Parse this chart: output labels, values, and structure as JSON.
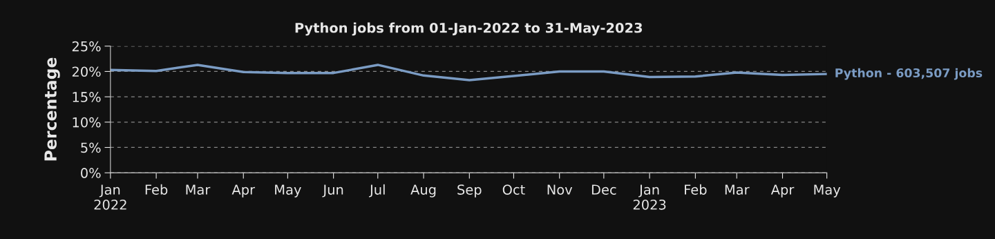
{
  "chart_data": {
    "type": "line",
    "title": "Python jobs from 01-Jan-2022 to 31-May-2023",
    "ylabel": "Percentage",
    "x": [
      "2022-01",
      "2022-02",
      "2022-03",
      "2022-04",
      "2022-05",
      "2022-06",
      "2022-07",
      "2022-08",
      "2022-09",
      "2022-10",
      "2022-11",
      "2022-12",
      "2023-01",
      "2023-02",
      "2023-03",
      "2023-04",
      "2023-05"
    ],
    "series": [
      {
        "name": "Python - 603,507 jobs",
        "color": "#7b9cc4",
        "values": [
          20.3,
          20.1,
          21.3,
          19.9,
          19.7,
          19.7,
          21.3,
          19.2,
          18.3,
          19.1,
          20.0,
          20.0,
          18.9,
          19.0,
          19.8,
          19.3,
          19.5
        ]
      }
    ],
    "xlim": [
      "2022-01",
      "2023-05"
    ],
    "xticks": [
      {
        "value": "2022-01",
        "label": "Jan\n2022"
      },
      {
        "value": "2022-02",
        "label": "Feb"
      },
      {
        "value": "2022-03",
        "label": "Mar"
      },
      {
        "value": "2022-04",
        "label": "Apr"
      },
      {
        "value": "2022-05",
        "label": "May"
      },
      {
        "value": "2022-06",
        "label": "Jun"
      },
      {
        "value": "2022-07",
        "label": "Jul"
      },
      {
        "value": "2022-08",
        "label": "Aug"
      },
      {
        "value": "2022-09",
        "label": "Sep"
      },
      {
        "value": "2022-10",
        "label": "Oct"
      },
      {
        "value": "2022-11",
        "label": "Nov"
      },
      {
        "value": "2022-12",
        "label": "Dec"
      },
      {
        "value": "2023-01",
        "label": "Jan\n2023"
      },
      {
        "value": "2023-02",
        "label": "Feb"
      },
      {
        "value": "2023-03",
        "label": "Mar"
      },
      {
        "value": "2023-04",
        "label": "Apr"
      },
      {
        "value": "2023-05",
        "label": "May"
      }
    ],
    "ylim": [
      0,
      25
    ],
    "yticks": [
      {
        "value": 0,
        "label": "0%"
      },
      {
        "value": 5,
        "label": "5%"
      },
      {
        "value": 10,
        "label": "10%"
      },
      {
        "value": 15,
        "label": "15%"
      },
      {
        "value": 20,
        "label": "20%"
      },
      {
        "value": 25,
        "label": "25%"
      }
    ],
    "grid": "y",
    "marker": "none",
    "line_style": "solid",
    "legend": false
  }
}
